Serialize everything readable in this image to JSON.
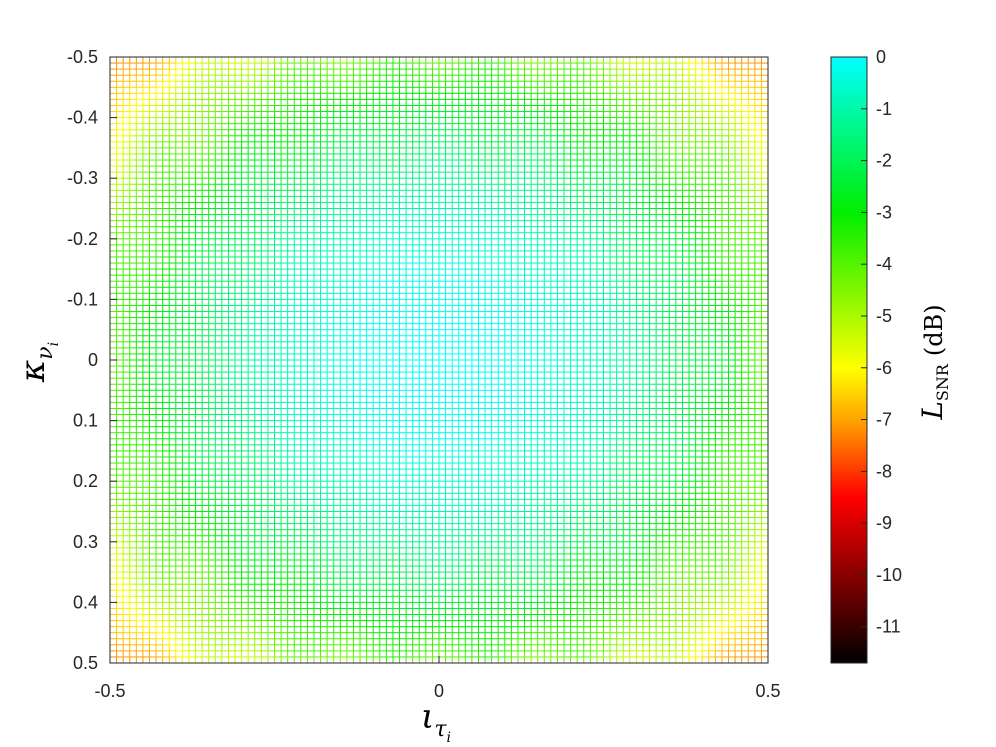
{
  "chart_data": {
    "type": "heatmap",
    "title": "",
    "xlabel": {
      "main": "ι",
      "sub": "τ",
      "subsub": "i"
    },
    "ylabel": {
      "main": "κ",
      "sub": "ν",
      "subsub": "i"
    },
    "x_range": [
      -0.5,
      0.5
    ],
    "y_range": [
      -0.5,
      0.5
    ],
    "y_direction": "reversed (−0.5 at top, 0.5 at bottom)",
    "x_ticks": [
      "-0.5",
      "0",
      "0.5"
    ],
    "y_ticks": [
      "-0.5",
      "-0.4",
      "-0.3",
      "-0.2",
      "-0.1",
      "0",
      "0.1",
      "0.2",
      "0.3",
      "0.4",
      "0.5"
    ],
    "grid_resolution": [
      101,
      101
    ],
    "rendering": "mesh (colored grid lines on white background)",
    "value_model": "L_SNR(dB) ≈ 10·log10(sinc²(ι)·sinc²(κ)) with a small ripple pattern",
    "colorbar": {
      "label": {
        "main": "L",
        "sub": "SNR",
        "unit": "(dB)"
      },
      "range": [
        -11.7,
        0
      ],
      "ticks": [
        "0",
        "-1",
        "-2",
        "-3",
        "-4",
        "-5",
        "-6",
        "-7",
        "-8",
        "-9",
        "-10",
        "-11"
      ],
      "colormap": [
        {
          "v": 0,
          "color": "#00ffff"
        },
        {
          "v": -3,
          "color": "#00ee00"
        },
        {
          "v": -6,
          "color": "#ffff00"
        },
        {
          "v": -7,
          "color": "#ffa500"
        },
        {
          "v": -8.5,
          "color": "#ff0000"
        },
        {
          "v": -11.7,
          "color": "#000000"
        }
      ]
    }
  }
}
